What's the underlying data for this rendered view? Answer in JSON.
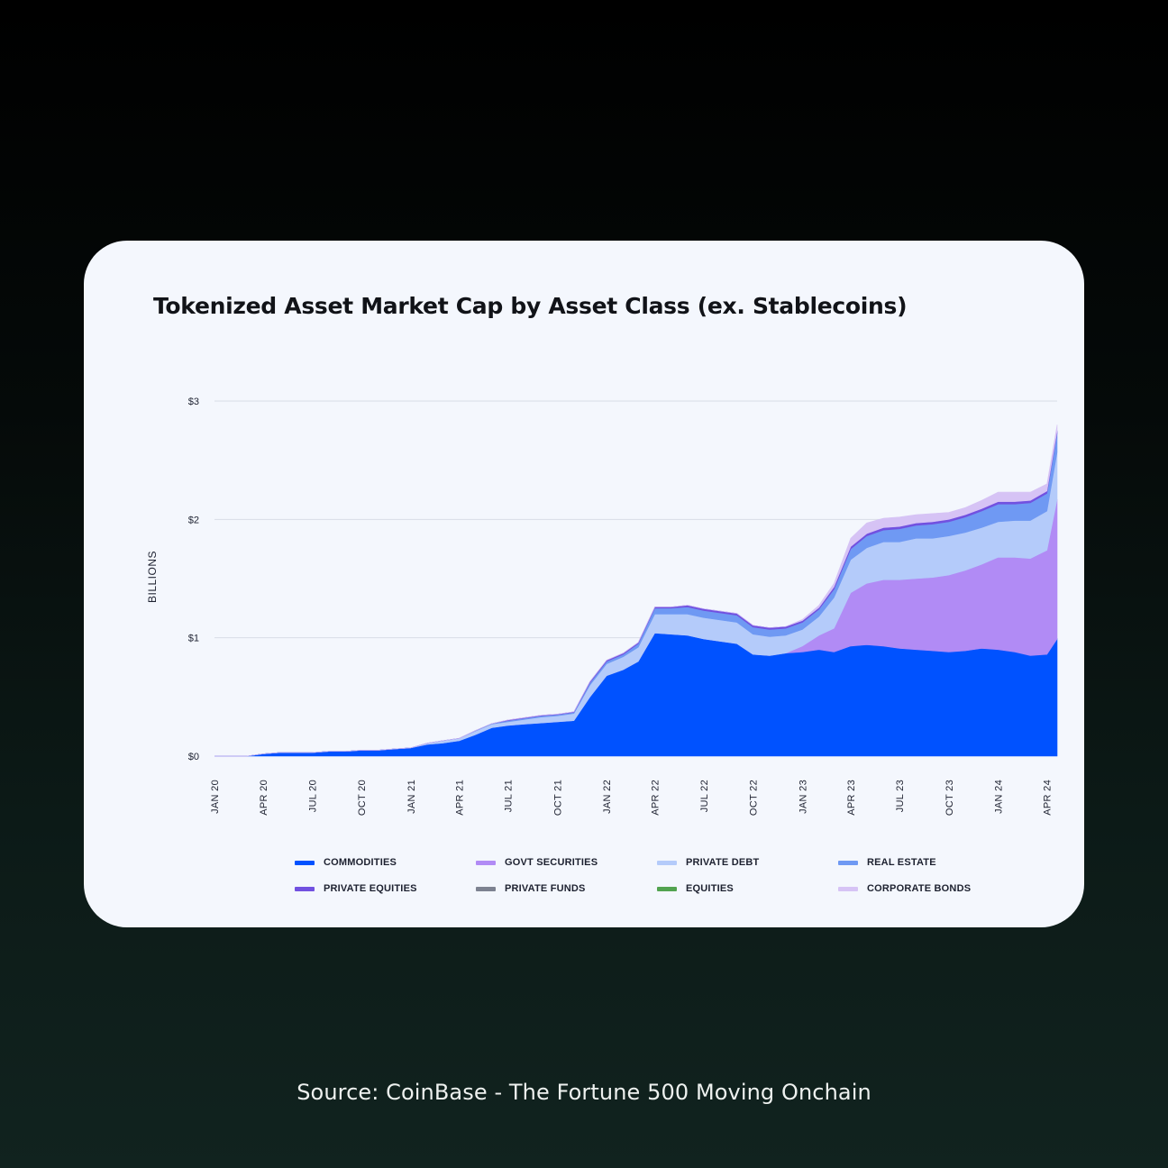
{
  "source_note": "Source: CoinBase - The Fortune 500 Moving Onchain",
  "chart_data": {
    "type": "area",
    "stacked": true,
    "title": "Tokenized Asset Market Cap by Asset Class (ex. Stablecoins)",
    "ylabel": "BILLIONS",
    "xlabel": "",
    "ylim": [
      0,
      3
    ],
    "yticks": [
      "$0",
      "$1",
      "$2",
      "$3"
    ],
    "ytick_values": [
      0,
      1,
      2,
      3
    ],
    "xticks": [
      "JAN 20",
      "APR 20",
      "JUL 20",
      "OCT 20",
      "JAN 21",
      "APR 21",
      "JUL 21",
      "OCT 21",
      "JAN 22",
      "APR 22",
      "JUL 22",
      "OCT 22",
      "JAN 23",
      "APR 23",
      "JUL 23",
      "OCT 23",
      "JAN 24",
      "APR 24"
    ],
    "grid": "horizontal",
    "legend_position": "bottom",
    "x": [
      "2020-01-01",
      "2020-02-01",
      "2020-03-01",
      "2020-04-01",
      "2020-05-01",
      "2020-06-01",
      "2020-07-01",
      "2020-08-01",
      "2020-09-01",
      "2020-10-01",
      "2020-11-01",
      "2020-12-01",
      "2021-01-01",
      "2021-02-01",
      "2021-03-01",
      "2021-04-01",
      "2021-05-01",
      "2021-06-01",
      "2021-07-01",
      "2021-08-01",
      "2021-09-01",
      "2021-10-01",
      "2021-11-01",
      "2021-12-01",
      "2022-01-01",
      "2022-02-01",
      "2022-03-01",
      "2022-04-01",
      "2022-05-01",
      "2022-06-01",
      "2022-07-01",
      "2022-08-01",
      "2022-09-01",
      "2022-10-01",
      "2022-11-01",
      "2022-12-01",
      "2023-01-01",
      "2023-02-01",
      "2023-03-01",
      "2023-04-01",
      "2023-05-01",
      "2023-06-01",
      "2023-07-01",
      "2023-08-01",
      "2023-09-01",
      "2023-10-01",
      "2023-11-01",
      "2023-12-01",
      "2024-01-01",
      "2024-02-01",
      "2024-03-01",
      "2024-04-01",
      "2024-04-20"
    ],
    "series": [
      {
        "name": "COMMODITIES",
        "color": "#0052ff",
        "values": [
          0.0,
          0.0,
          0.0,
          0.02,
          0.03,
          0.03,
          0.03,
          0.04,
          0.04,
          0.05,
          0.05,
          0.06,
          0.07,
          0.1,
          0.11,
          0.13,
          0.18,
          0.24,
          0.26,
          0.27,
          0.28,
          0.29,
          0.3,
          0.5,
          0.68,
          0.73,
          0.8,
          1.04,
          1.03,
          1.02,
          0.99,
          0.97,
          0.95,
          0.86,
          0.85,
          0.87,
          0.88,
          0.9,
          0.88,
          0.93,
          0.94,
          0.93,
          0.91,
          0.9,
          0.89,
          0.88,
          0.89,
          0.91,
          0.9,
          0.88,
          0.85,
          0.86,
          0.99
        ]
      },
      {
        "name": "GOVT SECURITIES",
        "color": "#b18bf5",
        "values": [
          0,
          0,
          0,
          0,
          0,
          0,
          0,
          0,
          0,
          0,
          0,
          0,
          0,
          0,
          0,
          0,
          0,
          0,
          0,
          0,
          0,
          0,
          0,
          0,
          0,
          0,
          0,
          0,
          0,
          0,
          0,
          0,
          0,
          0,
          0,
          0,
          0.05,
          0.12,
          0.2,
          0.45,
          0.52,
          0.56,
          0.58,
          0.6,
          0.62,
          0.65,
          0.68,
          0.71,
          0.78,
          0.8,
          0.82,
          0.88,
          1.18
        ]
      },
      {
        "name": "PRIVATE DEBT",
        "color": "#b4cbfa",
        "values": [
          0,
          0,
          0,
          0,
          0,
          0,
          0,
          0,
          0,
          0,
          0,
          0,
          0,
          0.01,
          0.02,
          0.02,
          0.03,
          0.03,
          0.03,
          0.04,
          0.05,
          0.05,
          0.06,
          0.1,
          0.1,
          0.11,
          0.12,
          0.16,
          0.17,
          0.18,
          0.18,
          0.18,
          0.18,
          0.17,
          0.16,
          0.15,
          0.14,
          0.16,
          0.26,
          0.28,
          0.3,
          0.32,
          0.32,
          0.34,
          0.33,
          0.33,
          0.32,
          0.31,
          0.3,
          0.31,
          0.32,
          0.33,
          0.4
        ]
      },
      {
        "name": "REAL ESTATE",
        "color": "#6f99f3",
        "values": [
          0,
          0,
          0,
          0,
          0,
          0,
          0,
          0,
          0,
          0,
          0,
          0,
          0,
          0,
          0,
          0,
          0.005,
          0.005,
          0.01,
          0.01,
          0.01,
          0.01,
          0.01,
          0.02,
          0.02,
          0.02,
          0.03,
          0.05,
          0.05,
          0.06,
          0.06,
          0.06,
          0.06,
          0.06,
          0.06,
          0.06,
          0.06,
          0.06,
          0.07,
          0.09,
          0.1,
          0.1,
          0.11,
          0.11,
          0.12,
          0.12,
          0.13,
          0.14,
          0.15,
          0.14,
          0.15,
          0.15,
          0.16
        ]
      },
      {
        "name": "PRIVATE EQUITIES",
        "color": "#7151e0",
        "values": [
          0,
          0,
          0,
          0,
          0,
          0,
          0,
          0,
          0,
          0,
          0,
          0,
          0,
          0,
          0,
          0,
          0,
          0,
          0.005,
          0.005,
          0.005,
          0.005,
          0.005,
          0.01,
          0.01,
          0.01,
          0.01,
          0.01,
          0.01,
          0.015,
          0.015,
          0.015,
          0.015,
          0.015,
          0.015,
          0.015,
          0.015,
          0.015,
          0.02,
          0.02,
          0.02,
          0.02,
          0.02,
          0.02,
          0.02,
          0.02,
          0.02,
          0.02,
          0.02,
          0.02,
          0.02,
          0.02,
          0.02
        ]
      },
      {
        "name": "PRIVATE FUNDS",
        "color": "#7d8291",
        "values": [
          0,
          0,
          0,
          0,
          0,
          0,
          0,
          0,
          0,
          0,
          0,
          0,
          0,
          0,
          0,
          0,
          0,
          0,
          0,
          0,
          0,
          0,
          0,
          0,
          0,
          0,
          0,
          0,
          0,
          0,
          0,
          0,
          0,
          0,
          0,
          0,
          0,
          0,
          0,
          0,
          0,
          0,
          0,
          0,
          0,
          0,
          0,
          0,
          0,
          0,
          0,
          0,
          0
        ]
      },
      {
        "name": "EQUITIES",
        "color": "#52a350",
        "values": [
          0,
          0,
          0,
          0,
          0,
          0,
          0,
          0,
          0,
          0,
          0,
          0,
          0,
          0,
          0,
          0,
          0,
          0,
          0,
          0,
          0,
          0,
          0,
          0,
          0,
          0,
          0,
          0,
          0,
          0,
          0,
          0,
          0,
          0,
          0,
          0,
          0,
          0,
          0,
          0,
          0,
          0,
          0,
          0,
          0,
          0,
          0,
          0,
          0,
          0,
          0,
          0,
          0
        ]
      },
      {
        "name": "CORPORATE BONDS",
        "color": "#d6c3f5",
        "values": [
          0,
          0,
          0,
          0,
          0,
          0,
          0,
          0,
          0,
          0,
          0,
          0,
          0,
          0,
          0,
          0,
          0,
          0,
          0,
          0,
          0,
          0,
          0,
          0,
          0,
          0,
          0,
          0,
          0,
          0,
          0,
          0,
          0,
          0,
          0,
          0,
          0.01,
          0.02,
          0.03,
          0.07,
          0.09,
          0.08,
          0.08,
          0.07,
          0.07,
          0.06,
          0.06,
          0.07,
          0.08,
          0.08,
          0.07,
          0.06,
          0.05
        ]
      }
    ]
  }
}
